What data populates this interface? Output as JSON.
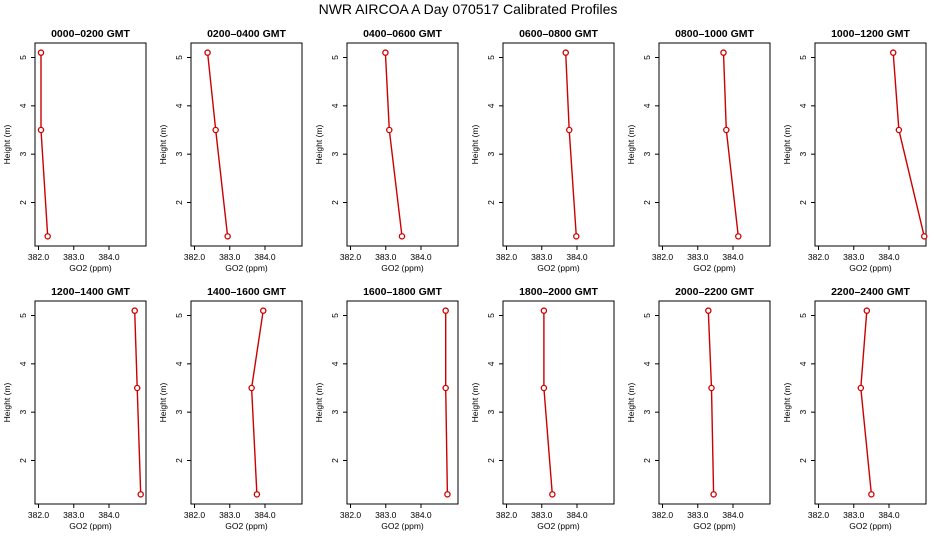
{
  "title": "NWR AIRCOA A  Day 070517  Calibrated Profiles",
  "colors": {
    "line": "#cc0000",
    "axis": "#000000",
    "background": "#ffffff"
  },
  "chart_data": [
    {
      "type": "line",
      "title": "0000–0200 GMT",
      "xlabel": "GO2 (ppm)",
      "ylabel": "Height (m)",
      "xlim": [
        381.9,
        385.05
      ],
      "ylim": [
        1.1,
        5.3
      ],
      "xticks": [
        "382.0",
        "383.0",
        "384.0"
      ],
      "yticks": [
        "2",
        "3",
        "4",
        "5"
      ],
      "points": [
        {
          "x": 382.07,
          "y": 5.1
        },
        {
          "x": 382.07,
          "y": 3.5
        },
        {
          "x": 382.26,
          "y": 1.3
        }
      ]
    },
    {
      "type": "line",
      "title": "0200–0400 GMT",
      "xlabel": "GO2 (ppm)",
      "ylabel": "Height (m)",
      "xlim": [
        381.9,
        385.05
      ],
      "ylim": [
        1.1,
        5.3
      ],
      "xticks": [
        "382.0",
        "383.0",
        "384.0"
      ],
      "yticks": [
        "2",
        "3",
        "4",
        "5"
      ],
      "points": [
        {
          "x": 382.37,
          "y": 5.1
        },
        {
          "x": 382.6,
          "y": 3.5
        },
        {
          "x": 382.94,
          "y": 1.3
        }
      ]
    },
    {
      "type": "line",
      "title": "0400–0600 GMT",
      "xlabel": "GO2 (ppm)",
      "ylabel": "Height (m)",
      "xlim": [
        381.9,
        385.05
      ],
      "ylim": [
        1.1,
        5.3
      ],
      "xticks": [
        "382.0",
        "383.0",
        "384.0"
      ],
      "yticks": [
        "2",
        "3",
        "4",
        "5"
      ],
      "points": [
        {
          "x": 382.99,
          "y": 5.1
        },
        {
          "x": 383.1,
          "y": 3.5
        },
        {
          "x": 383.46,
          "y": 1.3
        }
      ]
    },
    {
      "type": "line",
      "title": "0600–0800 GMT",
      "xlabel": "GO2 (ppm)",
      "ylabel": "Height (m)",
      "xlim": [
        381.9,
        385.05
      ],
      "ylim": [
        1.1,
        5.3
      ],
      "xticks": [
        "382.0",
        "383.0",
        "384.0"
      ],
      "yticks": [
        "2",
        "3",
        "4",
        "5"
      ],
      "points": [
        {
          "x": 383.68,
          "y": 5.1
        },
        {
          "x": 383.78,
          "y": 3.5
        },
        {
          "x": 383.98,
          "y": 1.3
        }
      ]
    },
    {
      "type": "line",
      "title": "0800–1000 GMT",
      "xlabel": "GO2 (ppm)",
      "ylabel": "Height (m)",
      "xlim": [
        381.9,
        385.05
      ],
      "ylim": [
        1.1,
        5.3
      ],
      "xticks": [
        "382.0",
        "383.0",
        "384.0"
      ],
      "yticks": [
        "2",
        "3",
        "4",
        "5"
      ],
      "points": [
        {
          "x": 383.73,
          "y": 5.1
        },
        {
          "x": 383.81,
          "y": 3.5
        },
        {
          "x": 384.15,
          "y": 1.3
        }
      ]
    },
    {
      "type": "line",
      "title": "1000–1200 GMT",
      "xlabel": "GO2 (ppm)",
      "ylabel": "Height (m)",
      "xlim": [
        381.9,
        385.05
      ],
      "ylim": [
        1.1,
        5.3
      ],
      "xticks": [
        "382.0",
        "383.0",
        "384.0"
      ],
      "yticks": [
        "2",
        "3",
        "4",
        "5"
      ],
      "points": [
        {
          "x": 384.12,
          "y": 5.1
        },
        {
          "x": 384.28,
          "y": 3.5
        },
        {
          "x": 385.0,
          "y": 1.3
        }
      ]
    },
    {
      "type": "line",
      "title": "1200–1400 GMT",
      "xlabel": "GO2 (ppm)",
      "ylabel": "Height (m)",
      "xlim": [
        381.9,
        385.05
      ],
      "ylim": [
        1.1,
        5.3
      ],
      "xticks": [
        "382.0",
        "383.0",
        "384.0"
      ],
      "yticks": [
        "2",
        "3",
        "4",
        "5"
      ],
      "points": [
        {
          "x": 384.73,
          "y": 5.1
        },
        {
          "x": 384.8,
          "y": 3.5
        },
        {
          "x": 384.9,
          "y": 1.3
        }
      ]
    },
    {
      "type": "line",
      "title": "1400–1600 GMT",
      "xlabel": "GO2 (ppm)",
      "ylabel": "Height (m)",
      "xlim": [
        381.9,
        385.05
      ],
      "ylim": [
        1.1,
        5.3
      ],
      "xticks": [
        "382.0",
        "383.0",
        "384.0"
      ],
      "yticks": [
        "2",
        "3",
        "4",
        "5"
      ],
      "points": [
        {
          "x": 383.95,
          "y": 5.1
        },
        {
          "x": 383.62,
          "y": 3.5
        },
        {
          "x": 383.77,
          "y": 1.3
        }
      ]
    },
    {
      "type": "line",
      "title": "1600–1800 GMT",
      "xlabel": "GO2 (ppm)",
      "ylabel": "Height (m)",
      "xlim": [
        381.9,
        385.05
      ],
      "ylim": [
        1.1,
        5.3
      ],
      "xticks": [
        "382.0",
        "383.0",
        "384.0"
      ],
      "yticks": [
        "2",
        "3",
        "4",
        "5"
      ],
      "points": [
        {
          "x": 384.7,
          "y": 5.1
        },
        {
          "x": 384.7,
          "y": 3.5
        },
        {
          "x": 384.75,
          "y": 1.3
        }
      ]
    },
    {
      "type": "line",
      "title": "1800–2000 GMT",
      "xlabel": "GO2 (ppm)",
      "ylabel": "Height (m)",
      "xlim": [
        381.9,
        385.05
      ],
      "ylim": [
        1.1,
        5.3
      ],
      "xticks": [
        "382.0",
        "383.0",
        "384.0"
      ],
      "yticks": [
        "2",
        "3",
        "4",
        "5"
      ],
      "points": [
        {
          "x": 383.06,
          "y": 5.1
        },
        {
          "x": 383.06,
          "y": 3.5
        },
        {
          "x": 383.3,
          "y": 1.3
        }
      ]
    },
    {
      "type": "line",
      "title": "2000–2200 GMT",
      "xlabel": "GO2 (ppm)",
      "ylabel": "Height (m)",
      "xlim": [
        381.9,
        385.05
      ],
      "ylim": [
        1.1,
        5.3
      ],
      "xticks": [
        "382.0",
        "383.0",
        "384.0"
      ],
      "yticks": [
        "2",
        "3",
        "4",
        "5"
      ],
      "points": [
        {
          "x": 383.3,
          "y": 5.1
        },
        {
          "x": 383.39,
          "y": 3.5
        },
        {
          "x": 383.45,
          "y": 1.3
        }
      ]
    },
    {
      "type": "line",
      "title": "2200–2400 GMT",
      "xlabel": "GO2 (ppm)",
      "ylabel": "Height (m)",
      "xlim": [
        381.9,
        385.05
      ],
      "ylim": [
        1.1,
        5.3
      ],
      "xticks": [
        "382.0",
        "383.0",
        "384.0"
      ],
      "yticks": [
        "2",
        "3",
        "4",
        "5"
      ],
      "points": [
        {
          "x": 383.37,
          "y": 5.1
        },
        {
          "x": 383.2,
          "y": 3.5
        },
        {
          "x": 383.5,
          "y": 1.3
        }
      ]
    }
  ]
}
